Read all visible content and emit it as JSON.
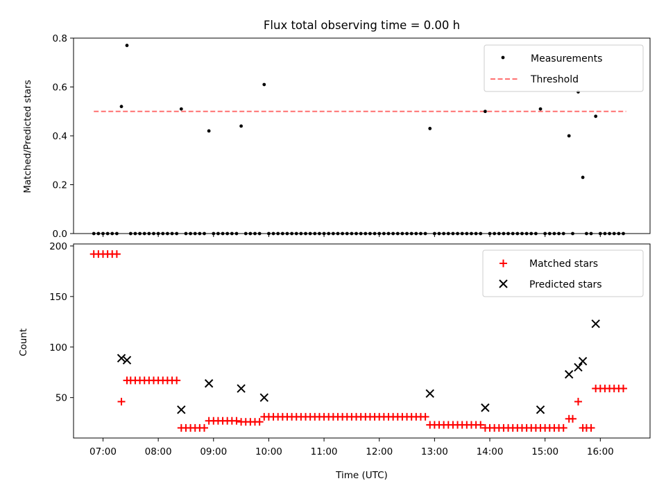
{
  "title": "Flux total observing time = 0.00 h",
  "colors": {
    "measurement": "#000000",
    "threshold": "#ff7070",
    "matched": "#ff0000",
    "predicted": "#000000"
  },
  "chart_data": [
    {
      "type": "scatter",
      "ylabel": "Matched/Predicted stars",
      "xlabel": "",
      "ylim": [
        0,
        0.8
      ],
      "yticks": [
        0.0,
        0.2,
        0.4,
        0.6,
        0.8
      ],
      "ytick_labels": [
        "0.0",
        "0.2",
        "0.4",
        "0.6",
        "0.8"
      ],
      "xlim": [
        "06:28",
        "16:54"
      ],
      "legend_position": "upper right",
      "legend": [
        "Measurements",
        "Threshold"
      ],
      "threshold": {
        "value": 0.5,
        "x_start": "06:50",
        "x_end": "16:28"
      },
      "series": [
        {
          "name": "Measurements",
          "points": [
            [
              "06:50",
              0
            ],
            [
              "06:55",
              0
            ],
            [
              "07:00",
              0
            ],
            [
              "07:05",
              0
            ],
            [
              "07:10",
              0
            ],
            [
              "07:15",
              0
            ],
            [
              "07:20",
              0.52
            ],
            [
              "07:26",
              0.77
            ],
            [
              "07:30",
              0
            ],
            [
              "07:35",
              0
            ],
            [
              "07:40",
              0
            ],
            [
              "07:45",
              0
            ],
            [
              "07:50",
              0
            ],
            [
              "07:55",
              0
            ],
            [
              "08:00",
              0
            ],
            [
              "08:05",
              0
            ],
            [
              "08:10",
              0
            ],
            [
              "08:15",
              0
            ],
            [
              "08:20",
              0
            ],
            [
              "08:25",
              0.51
            ],
            [
              "08:30",
              0
            ],
            [
              "08:35",
              0
            ],
            [
              "08:40",
              0
            ],
            [
              "08:45",
              0
            ],
            [
              "08:50",
              0
            ],
            [
              "08:55",
              0.42
            ],
            [
              "09:00",
              0
            ],
            [
              "09:05",
              0
            ],
            [
              "09:10",
              0
            ],
            [
              "09:15",
              0
            ],
            [
              "09:20",
              0
            ],
            [
              "09:25",
              0
            ],
            [
              "09:30",
              0.44
            ],
            [
              "09:35",
              0
            ],
            [
              "09:40",
              0
            ],
            [
              "09:45",
              0
            ],
            [
              "09:50",
              0
            ],
            [
              "09:55",
              0.61
            ],
            [
              "10:00",
              0
            ],
            [
              "10:05",
              0
            ],
            [
              "10:10",
              0
            ],
            [
              "10:15",
              0
            ],
            [
              "10:20",
              0
            ],
            [
              "10:25",
              0
            ],
            [
              "10:30",
              0
            ],
            [
              "10:35",
              0
            ],
            [
              "10:40",
              0
            ],
            [
              "10:45",
              0
            ],
            [
              "10:50",
              0
            ],
            [
              "10:55",
              0
            ],
            [
              "11:00",
              0
            ],
            [
              "11:05",
              0
            ],
            [
              "11:10",
              0
            ],
            [
              "11:15",
              0
            ],
            [
              "11:20",
              0
            ],
            [
              "11:25",
              0
            ],
            [
              "11:30",
              0
            ],
            [
              "11:35",
              0
            ],
            [
              "11:40",
              0
            ],
            [
              "11:45",
              0
            ],
            [
              "11:50",
              0
            ],
            [
              "11:55",
              0
            ],
            [
              "12:00",
              0
            ],
            [
              "12:05",
              0
            ],
            [
              "12:10",
              0
            ],
            [
              "12:15",
              0
            ],
            [
              "12:20",
              0
            ],
            [
              "12:25",
              0
            ],
            [
              "12:30",
              0
            ],
            [
              "12:35",
              0
            ],
            [
              "12:40",
              0
            ],
            [
              "12:45",
              0
            ],
            [
              "12:50",
              0
            ],
            [
              "12:55",
              0.43
            ],
            [
              "13:00",
              0
            ],
            [
              "13:05",
              0
            ],
            [
              "13:10",
              0
            ],
            [
              "13:15",
              0
            ],
            [
              "13:20",
              0
            ],
            [
              "13:25",
              0
            ],
            [
              "13:30",
              0
            ],
            [
              "13:35",
              0
            ],
            [
              "13:40",
              0
            ],
            [
              "13:45",
              0
            ],
            [
              "13:50",
              0
            ],
            [
              "13:55",
              0.5
            ],
            [
              "14:00",
              0
            ],
            [
              "14:05",
              0
            ],
            [
              "14:10",
              0
            ],
            [
              "14:15",
              0
            ],
            [
              "14:20",
              0
            ],
            [
              "14:25",
              0
            ],
            [
              "14:30",
              0
            ],
            [
              "14:35",
              0
            ],
            [
              "14:40",
              0
            ],
            [
              "14:45",
              0
            ],
            [
              "14:50",
              0
            ],
            [
              "14:55",
              0.51
            ],
            [
              "15:00",
              0
            ],
            [
              "15:05",
              0
            ],
            [
              "15:10",
              0
            ],
            [
              "15:15",
              0
            ],
            [
              "15:20",
              0
            ],
            [
              "15:26",
              0.4
            ],
            [
              "15:30",
              0
            ],
            [
              "15:36",
              0.58
            ],
            [
              "15:41",
              0.23
            ],
            [
              "15:45",
              0
            ],
            [
              "15:50",
              0
            ],
            [
              "15:55",
              0.48
            ],
            [
              "16:00",
              0
            ],
            [
              "16:05",
              0
            ],
            [
              "16:10",
              0
            ],
            [
              "16:15",
              0
            ],
            [
              "16:20",
              0
            ],
            [
              "16:25",
              0
            ]
          ]
        }
      ]
    },
    {
      "type": "scatter",
      "ylabel": "Count",
      "xlabel": "Time (UTC)",
      "ylim": [
        10,
        202
      ],
      "yticks": [
        50,
        100,
        150,
        200
      ],
      "ytick_labels": [
        "50",
        "100",
        "150",
        "200"
      ],
      "xlim": [
        "06:28",
        "16:54"
      ],
      "xticks": [
        "07:00",
        "08:00",
        "09:00",
        "10:00",
        "11:00",
        "12:00",
        "13:00",
        "14:00",
        "15:00",
        "16:00"
      ],
      "xtick_labels": [
        "07:00",
        "08:00",
        "09:00",
        "10:00",
        "11:00",
        "12:00",
        "13:00",
        "14:00",
        "15:00",
        "16:00"
      ],
      "legend_position": "upper right",
      "legend": [
        "Matched stars",
        "Predicted stars"
      ],
      "series": [
        {
          "name": "Matched stars",
          "points": [
            [
              "06:50",
              192
            ],
            [
              "06:55",
              192
            ],
            [
              "07:00",
              192
            ],
            [
              "07:05",
              192
            ],
            [
              "07:10",
              192
            ],
            [
              "07:15",
              192
            ],
            [
              "07:20",
              46
            ],
            [
              "07:26",
              67
            ],
            [
              "07:30",
              67
            ],
            [
              "07:35",
              67
            ],
            [
              "07:40",
              67
            ],
            [
              "07:45",
              67
            ],
            [
              "07:50",
              67
            ],
            [
              "07:55",
              67
            ],
            [
              "08:00",
              67
            ],
            [
              "08:05",
              67
            ],
            [
              "08:10",
              67
            ],
            [
              "08:15",
              67
            ],
            [
              "08:20",
              67
            ],
            [
              "08:25",
              20
            ],
            [
              "08:30",
              20
            ],
            [
              "08:35",
              20
            ],
            [
              "08:40",
              20
            ],
            [
              "08:45",
              20
            ],
            [
              "08:50",
              20
            ],
            [
              "08:55",
              27
            ],
            [
              "09:00",
              27
            ],
            [
              "09:05",
              27
            ],
            [
              "09:10",
              27
            ],
            [
              "09:15",
              27
            ],
            [
              "09:20",
              27
            ],
            [
              "09:25",
              27
            ],
            [
              "09:30",
              26
            ],
            [
              "09:35",
              26
            ],
            [
              "09:40",
              26
            ],
            [
              "09:45",
              26
            ],
            [
              "09:50",
              26
            ],
            [
              "09:55",
              31
            ],
            [
              "10:00",
              31
            ],
            [
              "10:05",
              31
            ],
            [
              "10:10",
              31
            ],
            [
              "10:15",
              31
            ],
            [
              "10:20",
              31
            ],
            [
              "10:25",
              31
            ],
            [
              "10:30",
              31
            ],
            [
              "10:35",
              31
            ],
            [
              "10:40",
              31
            ],
            [
              "10:45",
              31
            ],
            [
              "10:50",
              31
            ],
            [
              "10:55",
              31
            ],
            [
              "11:00",
              31
            ],
            [
              "11:05",
              31
            ],
            [
              "11:10",
              31
            ],
            [
              "11:15",
              31
            ],
            [
              "11:20",
              31
            ],
            [
              "11:25",
              31
            ],
            [
              "11:30",
              31
            ],
            [
              "11:35",
              31
            ],
            [
              "11:40",
              31
            ],
            [
              "11:45",
              31
            ],
            [
              "11:50",
              31
            ],
            [
              "11:55",
              31
            ],
            [
              "12:00",
              31
            ],
            [
              "12:05",
              31
            ],
            [
              "12:10",
              31
            ],
            [
              "12:15",
              31
            ],
            [
              "12:20",
              31
            ],
            [
              "12:25",
              31
            ],
            [
              "12:30",
              31
            ],
            [
              "12:35",
              31
            ],
            [
              "12:40",
              31
            ],
            [
              "12:45",
              31
            ],
            [
              "12:50",
              31
            ],
            [
              "12:55",
              23
            ],
            [
              "13:00",
              23
            ],
            [
              "13:05",
              23
            ],
            [
              "13:10",
              23
            ],
            [
              "13:15",
              23
            ],
            [
              "13:20",
              23
            ],
            [
              "13:25",
              23
            ],
            [
              "13:30",
              23
            ],
            [
              "13:35",
              23
            ],
            [
              "13:40",
              23
            ],
            [
              "13:45",
              23
            ],
            [
              "13:50",
              23
            ],
            [
              "13:55",
              20
            ],
            [
              "14:00",
              20
            ],
            [
              "14:05",
              20
            ],
            [
              "14:10",
              20
            ],
            [
              "14:15",
              20
            ],
            [
              "14:20",
              20
            ],
            [
              "14:25",
              20
            ],
            [
              "14:30",
              20
            ],
            [
              "14:35",
              20
            ],
            [
              "14:40",
              20
            ],
            [
              "14:45",
              20
            ],
            [
              "14:50",
              20
            ],
            [
              "14:55",
              20
            ],
            [
              "15:00",
              20
            ],
            [
              "15:05",
              20
            ],
            [
              "15:10",
              20
            ],
            [
              "15:15",
              20
            ],
            [
              "15:20",
              20
            ],
            [
              "15:26",
              29
            ],
            [
              "15:30",
              29
            ],
            [
              "15:36",
              46
            ],
            [
              "15:41",
              20
            ],
            [
              "15:45",
              20
            ],
            [
              "15:50",
              20
            ],
            [
              "15:55",
              59
            ],
            [
              "16:00",
              59
            ],
            [
              "16:05",
              59
            ],
            [
              "16:10",
              59
            ],
            [
              "16:15",
              59
            ],
            [
              "16:20",
              59
            ],
            [
              "16:25",
              59
            ]
          ]
        },
        {
          "name": "Predicted stars",
          "points": [
            [
              "07:20",
              89
            ],
            [
              "07:26",
              87
            ],
            [
              "08:25",
              38
            ],
            [
              "08:55",
              64
            ],
            [
              "09:30",
              59
            ],
            [
              "09:55",
              50
            ],
            [
              "12:55",
              54
            ],
            [
              "13:55",
              40
            ],
            [
              "14:55",
              38
            ],
            [
              "15:26",
              73
            ],
            [
              "15:36",
              80
            ],
            [
              "15:41",
              86
            ],
            [
              "15:55",
              123
            ]
          ]
        }
      ]
    }
  ]
}
